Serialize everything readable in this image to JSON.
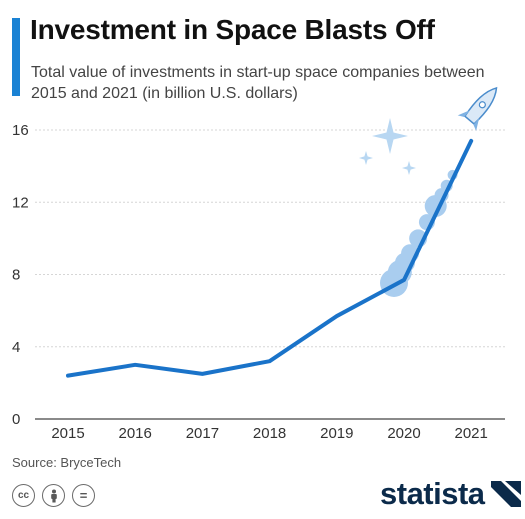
{
  "title": "Investment in Space Blasts Off",
  "subtitle": "Total value of investments in start-up space companies between 2015 and 2021 (in billion U.S. dollars)",
  "source": "Source: BryceTech",
  "footer": {
    "license_icons": [
      "cc-icon",
      "by-icon",
      "nd-icon"
    ],
    "cc_label": "cc",
    "nd_label": "="
  },
  "logo": {
    "text": "statista"
  },
  "colors": {
    "accent": "#1a82d4",
    "line": "#1a73c9",
    "bubble": "#a9cdef",
    "sparkle": "#b8d7f2",
    "brand": "#0b2a4a"
  },
  "chart_data": {
    "type": "line",
    "x": [
      2015,
      2016,
      2017,
      2018,
      2019,
      2020,
      2021
    ],
    "categories": [
      "2015",
      "2016",
      "2017",
      "2018",
      "2019",
      "2020",
      "2021"
    ],
    "values": [
      2.4,
      3.0,
      2.5,
      3.2,
      5.7,
      7.7,
      15.4
    ],
    "yticks": [
      "0",
      "4",
      "8",
      "12",
      "16"
    ],
    "ylim": [
      0,
      17
    ],
    "grid": true,
    "legend": "none"
  }
}
